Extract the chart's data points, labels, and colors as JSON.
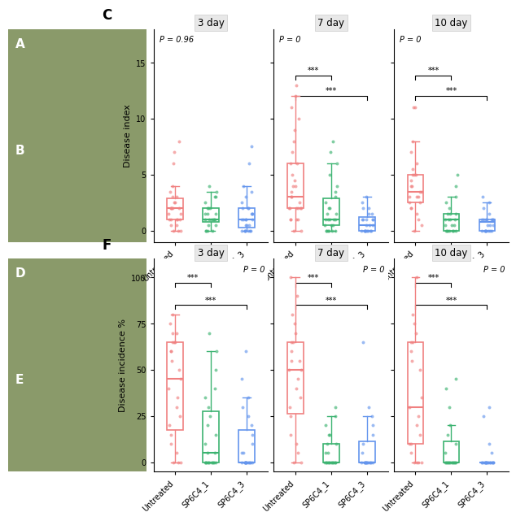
{
  "days": [
    "3 day",
    "7 day",
    "10 day"
  ],
  "day_keys": [
    "3day",
    "7day",
    "10day"
  ],
  "groups": [
    "Untreated",
    "SP6C4_1",
    "SP6C4_3"
  ],
  "colors": {
    "Untreated": "#F08080",
    "SP6C4_1": "#3CB371",
    "SP6C4_3": "#6495ED"
  },
  "panel_C_ylabel": "Disease index",
  "panel_F_ylabel": "Disease incidence %",
  "panel_C_ylim": [
    -1,
    18
  ],
  "panel_F_ylim": [
    -5,
    110
  ],
  "panel_C_yticks": [
    0,
    5,
    10,
    15
  ],
  "panel_F_yticks": [
    0,
    25,
    50,
    75,
    100
  ],
  "C_3day": {
    "Untreated": [
      0,
      0,
      0,
      0.5,
      0.5,
      1,
      1,
      1,
      1,
      1,
      1.5,
      1.5,
      2,
      2,
      2,
      2,
      2,
      2.5,
      2.5,
      3,
      3,
      3.5,
      4,
      6,
      7,
      8
    ],
    "SP6C4_1": [
      0,
      0,
      0,
      0,
      0.5,
      0.5,
      1,
      1,
      1,
      1,
      1,
      1,
      1.5,
      1.5,
      1.5,
      2,
      2,
      2,
      2.5,
      3,
      3,
      3.5,
      4
    ],
    "SP6C4_3": [
      0,
      0,
      0,
      0,
      0,
      0,
      0,
      0.5,
      0.5,
      0.5,
      1,
      1,
      1,
      1,
      1,
      1.5,
      1.5,
      1.5,
      2,
      2,
      2,
      2.5,
      3,
      3.5,
      4,
      6,
      7.5
    ]
  },
  "C_7day": {
    "Untreated": [
      0,
      0,
      1,
      1,
      1,
      1,
      2,
      2,
      2,
      2,
      2,
      2,
      2.5,
      3,
      3,
      3.5,
      4,
      4,
      4.5,
      5,
      6,
      6,
      7,
      8,
      9,
      10,
      11,
      12,
      13
    ],
    "SP6C4_1": [
      0,
      0,
      0,
      0,
      0,
      0,
      0.5,
      0.5,
      0.5,
      1,
      1,
      1,
      1,
      1,
      1.5,
      1.5,
      2,
      2,
      2.5,
      3,
      3.5,
      4,
      5,
      6,
      7,
      8
    ],
    "SP6C4_3": [
      0,
      0,
      0,
      0,
      0,
      0,
      0,
      0,
      0,
      0.5,
      0.5,
      0.5,
      1,
      1,
      1,
      1,
      1,
      1.5,
      1.5,
      2,
      2,
      2.5,
      3
    ]
  },
  "C_10day": {
    "Untreated": [
      0,
      0.5,
      1,
      1.5,
      2,
      2,
      2.5,
      2.5,
      3,
      3,
      3,
      3.5,
      3.5,
      4,
      4,
      4.5,
      5,
      5,
      5,
      5.5,
      6,
      7,
      8,
      11,
      11
    ],
    "SP6C4_1": [
      0,
      0,
      0,
      0,
      0,
      0,
      0,
      0.5,
      0.5,
      0.5,
      1,
      1,
      1,
      1,
      1.5,
      1.5,
      1.5,
      2,
      2.5,
      3,
      4,
      5
    ],
    "SP6C4_3": [
      0,
      0,
      0,
      0,
      0,
      0,
      0,
      0,
      0.5,
      0.5,
      0.5,
      1,
      1,
      1,
      1,
      1,
      1,
      1,
      1.5,
      2,
      2.5,
      3
    ]
  },
  "F_3day": {
    "Untreated": [
      0,
      0,
      0,
      5,
      10,
      15,
      20,
      25,
      30,
      35,
      40,
      45,
      50,
      55,
      60,
      60,
      65,
      65,
      65,
      70,
      70,
      75,
      80
    ],
    "SP6C4_1": [
      0,
      0,
      0,
      0,
      0,
      0,
      0,
      0,
      0,
      0,
      0,
      5,
      5,
      10,
      15,
      20,
      25,
      30,
      35,
      40,
      50,
      60,
      70
    ],
    "SP6C4_3": [
      0,
      0,
      0,
      0,
      0,
      0,
      0,
      0,
      0,
      0,
      0,
      0,
      0,
      5,
      5,
      10,
      15,
      20,
      25,
      30,
      35,
      45,
      60
    ]
  },
  "F_7day": {
    "Untreated": [
      0,
      0,
      5,
      10,
      15,
      25,
      30,
      35,
      40,
      45,
      50,
      50,
      55,
      55,
      60,
      65,
      65,
      70,
      75,
      80,
      90,
      100
    ],
    "SP6C4_1": [
      0,
      0,
      0,
      0,
      0,
      0,
      0,
      0,
      0,
      0,
      0,
      0,
      5,
      5,
      10,
      10,
      15,
      15,
      20,
      25,
      30
    ],
    "SP6C4_3": [
      0,
      0,
      0,
      0,
      0,
      0,
      0,
      0,
      0,
      0,
      0,
      0,
      0,
      5,
      10,
      15,
      20,
      25,
      30,
      65
    ]
  },
  "F_10day": {
    "Untreated": [
      0,
      0,
      0,
      0,
      5,
      10,
      10,
      15,
      20,
      25,
      30,
      35,
      50,
      55,
      60,
      65,
      65,
      70,
      75,
      80,
      100
    ],
    "SP6C4_1": [
      0,
      0,
      0,
      0,
      0,
      0,
      0,
      0,
      0,
      0,
      0,
      0,
      0,
      5,
      10,
      15,
      20,
      30,
      40,
      45
    ],
    "SP6C4_3": [
      0,
      0,
      0,
      0,
      0,
      0,
      0,
      0,
      0,
      0,
      0,
      0,
      0,
      0,
      0,
      0,
      0,
      5,
      10,
      25,
      30
    ]
  },
  "C_significance": {
    "3day": {
      "Kruskal": "P = 0.96",
      "pairs": [],
      "p_ha": "left"
    },
    "7day": {
      "Kruskal": "P = 0",
      "pairs": [
        [
          "Untreated",
          "SP6C4_1",
          "***"
        ],
        [
          "Untreated",
          "SP6C4_3",
          "***"
        ]
      ],
      "p_ha": "left"
    },
    "10day": {
      "Kruskal": "P = 0",
      "pairs": [
        [
          "Untreated",
          "SP6C4_1",
          "***"
        ],
        [
          "Untreated",
          "SP6C4_3",
          "***"
        ]
      ],
      "p_ha": "left"
    }
  },
  "F_significance": {
    "3day": {
      "Kruskal": "P = 0",
      "pairs": [
        [
          "Untreated",
          "SP6C4_1",
          "***"
        ],
        [
          "Untreated",
          "SP6C4_3",
          "***"
        ]
      ],
      "p_ha": "right"
    },
    "7day": {
      "Kruskal": "P = 0",
      "pairs": [
        [
          "Untreated",
          "SP6C4_1",
          "***"
        ],
        [
          "Untreated",
          "SP6C4_3",
          "***"
        ]
      ],
      "p_ha": "right"
    },
    "10day": {
      "Kruskal": "P = 0",
      "pairs": [
        [
          "Untreated",
          "SP6C4_1",
          "***"
        ],
        [
          "Untreated",
          "SP6C4_3",
          "***"
        ]
      ],
      "p_ha": "right"
    }
  },
  "title_bg": "#e8e8e8",
  "panel_label_fontsize": 11,
  "axis_label_fontsize": 8,
  "tick_fontsize": 7,
  "strip_fontsize": 8.5,
  "sig_fontsize": 7
}
